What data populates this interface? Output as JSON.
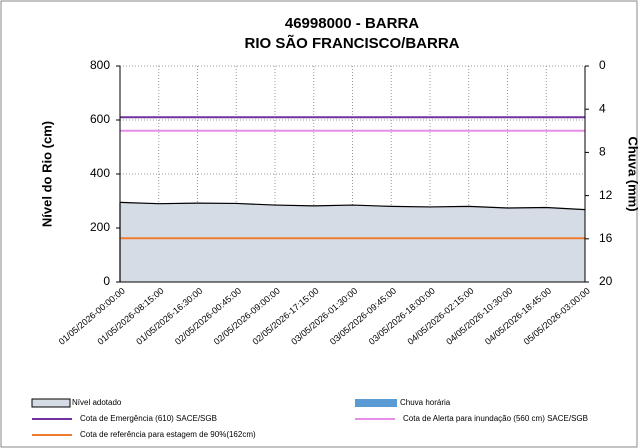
{
  "chart_data": {
    "type": "area",
    "title": "46998000 - BARRA",
    "subtitle": "RIO SÃO FRANCISCO/BARRA",
    "y_label": "Nível do Rio (cm)",
    "y2_label": "Chuva (mm)",
    "categories": [
      "01/05/2026-00:00:00",
      "01/05/2026-08:15:00",
      "01/05/2026-16:30:00",
      "02/05/2026-00:45:00",
      "02/05/2026-09:00:00",
      "02/05/2026-17:15:00",
      "03/05/2026-01:30:00",
      "03/05/2026-09:45:00",
      "03/05/2026-18:00:00",
      "04/05/2026-02:15:00",
      "04/05/2026-10:30:00",
      "04/05/2026-18:45:00",
      "05/05/2026-03:00:00"
    ],
    "ylim": [
      0,
      800
    ],
    "yticks": [
      0,
      200,
      400,
      600,
      800
    ],
    "y2lim": [
      20,
      0
    ],
    "y2ticks": [
      0,
      4,
      8,
      12,
      16,
      20
    ],
    "grid": true,
    "area_series": {
      "name": "Nível adotado",
      "color": "#d6dce5",
      "values": [
        295,
        290,
        292,
        291,
        285,
        282,
        285,
        280,
        278,
        280,
        274,
        276,
        268
      ]
    },
    "bar_series": {
      "name": "Chuva horária",
      "color": "#5b9bd5",
      "axis": "y2",
      "values": [
        0,
        0,
        0,
        0,
        0,
        0,
        0,
        0,
        0,
        0,
        0,
        0,
        0
      ]
    },
    "reference_lines": [
      {
        "name": "Cota de Emergência (610) SACE/SGB",
        "value": 610,
        "color": "#7030a0"
      },
      {
        "name": "Cota de Alerta para inundação (560 cm) SACE/SGB",
        "value": 560,
        "color": "#e88ee8"
      },
      {
        "name": "Cota de referência para estagem de 90%(162cm)",
        "value": 162,
        "color": "#ed7d31"
      }
    ]
  }
}
